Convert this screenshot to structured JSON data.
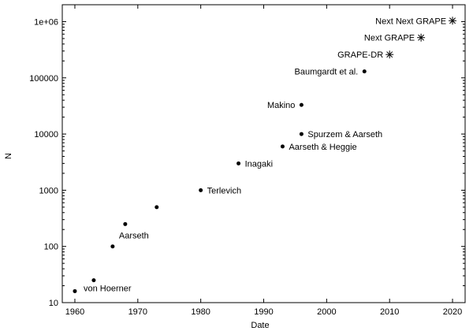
{
  "chart_data": {
    "type": "scatter",
    "title": "",
    "xlabel": "Date",
    "ylabel": "N",
    "xlim": [
      1958,
      2022
    ],
    "ylim": [
      10,
      2000000
    ],
    "yscale": "log",
    "grid": false,
    "legend": "none",
    "xticks": [
      "1960",
      "1970",
      "1980",
      "1990",
      "2000",
      "2010",
      "2020"
    ],
    "yticks": [
      "10",
      "100",
      "1000",
      "10000",
      "100000",
      "1e+06"
    ],
    "points": [
      {
        "x": 1960,
        "y": 16,
        "label": "von Hoerner",
        "marker": "dot",
        "anchor": "below-right"
      },
      {
        "x": 1963,
        "y": 25,
        "label": "",
        "marker": "dot"
      },
      {
        "x": 1966,
        "y": 100,
        "label": "Aarseth",
        "marker": "dot",
        "anchor": "above-right"
      },
      {
        "x": 1968,
        "y": 250,
        "label": "",
        "marker": "dot"
      },
      {
        "x": 1973,
        "y": 500,
        "label": "",
        "marker": "dot"
      },
      {
        "x": 1980,
        "y": 1000,
        "label": "Terlevich",
        "marker": "dot",
        "anchor": "right"
      },
      {
        "x": 1986,
        "y": 3000,
        "label": "Inagaki",
        "marker": "dot",
        "anchor": "right"
      },
      {
        "x": 1993,
        "y": 6000,
        "label": "Aarseth & Heggie",
        "marker": "dot",
        "anchor": "right"
      },
      {
        "x": 1996,
        "y": 10000,
        "label": "Spurzem & Aarseth",
        "marker": "dot",
        "anchor": "right"
      },
      {
        "x": 1996,
        "y": 33000,
        "label": "Makino",
        "marker": "dot",
        "anchor": "left"
      },
      {
        "x": 2006,
        "y": 130000,
        "label": "Baumgardt et al.",
        "marker": "dot",
        "anchor": "left"
      },
      {
        "x": 2010,
        "y": 260000,
        "label": "GRAPE-DR",
        "marker": "star",
        "anchor": "left"
      },
      {
        "x": 2015,
        "y": 520000,
        "label": "Next GRAPE",
        "marker": "star",
        "anchor": "left"
      },
      {
        "x": 2020,
        "y": 1040000,
        "label": "Next Next GRAPE",
        "marker": "star",
        "anchor": "left"
      }
    ]
  }
}
